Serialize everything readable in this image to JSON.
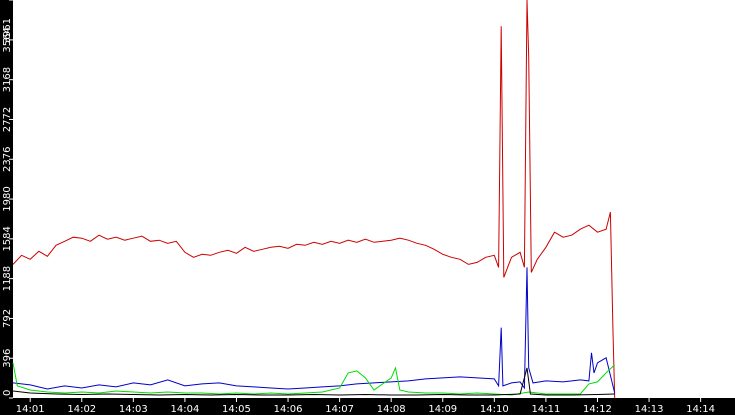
{
  "chart_data": {
    "type": "line",
    "title": "",
    "xlabel": "",
    "ylabel": "",
    "xlim": [
      "14:00:40",
      "14:14:40"
    ],
    "ylim": [
      0,
      3961
    ],
    "grid": false,
    "legend": "none",
    "y_ticks": [
      "0",
      "396",
      "792",
      "1188",
      "1584",
      "1980",
      "2376",
      "2772",
      "3168",
      "3564",
      "3961"
    ],
    "x_ticks": [
      "14:01",
      "14:02",
      "14:03",
      "14:04",
      "14:05",
      "14:06",
      "14:07",
      "14:08",
      "14:09",
      "14:10",
      "14:11",
      "14:12",
      "14:13",
      "14:14"
    ],
    "colors": {
      "red": "#cc0000",
      "blue": "#0000cc",
      "green": "#00dd00",
      "black": "#000000",
      "axis_bg": "#000000",
      "tick_text": "#ffffff"
    },
    "series": [
      {
        "color": "red",
        "points": [
          [
            "14:00:40",
            1330
          ],
          [
            "14:00:50",
            1420
          ],
          [
            "14:01:00",
            1380
          ],
          [
            "14:01:10",
            1460
          ],
          [
            "14:01:20",
            1410
          ],
          [
            "14:01:30",
            1520
          ],
          [
            "14:01:40",
            1560
          ],
          [
            "14:01:50",
            1600
          ],
          [
            "14:02:00",
            1590
          ],
          [
            "14:02:10",
            1560
          ],
          [
            "14:02:20",
            1620
          ],
          [
            "14:02:30",
            1580
          ],
          [
            "14:02:40",
            1600
          ],
          [
            "14:02:50",
            1570
          ],
          [
            "14:03:00",
            1590
          ],
          [
            "14:03:10",
            1610
          ],
          [
            "14:03:20",
            1560
          ],
          [
            "14:03:30",
            1570
          ],
          [
            "14:03:40",
            1540
          ],
          [
            "14:03:50",
            1560
          ],
          [
            "14:04:00",
            1450
          ],
          [
            "14:04:10",
            1400
          ],
          [
            "14:04:20",
            1430
          ],
          [
            "14:04:30",
            1420
          ],
          [
            "14:04:40",
            1450
          ],
          [
            "14:04:50",
            1470
          ],
          [
            "14:05:00",
            1440
          ],
          [
            "14:05:10",
            1500
          ],
          [
            "14:05:20",
            1460
          ],
          [
            "14:05:30",
            1480
          ],
          [
            "14:05:40",
            1500
          ],
          [
            "14:05:50",
            1510
          ],
          [
            "14:06:00",
            1490
          ],
          [
            "14:06:10",
            1530
          ],
          [
            "14:06:20",
            1520
          ],
          [
            "14:06:30",
            1550
          ],
          [
            "14:06:40",
            1530
          ],
          [
            "14:06:50",
            1560
          ],
          [
            "14:07:00",
            1540
          ],
          [
            "14:07:10",
            1570
          ],
          [
            "14:07:20",
            1550
          ],
          [
            "14:07:30",
            1580
          ],
          [
            "14:07:40",
            1550
          ],
          [
            "14:07:50",
            1560
          ],
          [
            "14:08:00",
            1570
          ],
          [
            "14:08:10",
            1590
          ],
          [
            "14:08:20",
            1570
          ],
          [
            "14:08:30",
            1540
          ],
          [
            "14:08:40",
            1520
          ],
          [
            "14:08:50",
            1480
          ],
          [
            "14:09:00",
            1430
          ],
          [
            "14:09:10",
            1400
          ],
          [
            "14:09:20",
            1380
          ],
          [
            "14:09:30",
            1330
          ],
          [
            "14:09:40",
            1350
          ],
          [
            "14:09:50",
            1400
          ],
          [
            "14:10:00",
            1420
          ],
          [
            "14:10:05",
            1300
          ],
          [
            "14:10:08",
            3700
          ],
          [
            "14:10:11",
            1200
          ],
          [
            "14:10:20",
            1400
          ],
          [
            "14:10:30",
            1450
          ],
          [
            "14:10:35",
            1300
          ],
          [
            "14:10:38",
            3961
          ],
          [
            "14:10:40",
            3400
          ],
          [
            "14:10:43",
            1250
          ],
          [
            "14:10:50",
            1380
          ],
          [
            "14:11:00",
            1500
          ],
          [
            "14:11:10",
            1650
          ],
          [
            "14:11:20",
            1600
          ],
          [
            "14:11:30",
            1620
          ],
          [
            "14:11:40",
            1680
          ],
          [
            "14:11:50",
            1720
          ],
          [
            "14:12:00",
            1650
          ],
          [
            "14:12:10",
            1680
          ],
          [
            "14:12:15",
            1850
          ],
          [
            "14:12:18",
            700
          ],
          [
            "14:12:20",
            0
          ]
        ]
      },
      {
        "color": "blue",
        "points": [
          [
            "14:00:40",
            150
          ],
          [
            "14:01:00",
            130
          ],
          [
            "14:01:20",
            90
          ],
          [
            "14:01:40",
            120
          ],
          [
            "14:02:00",
            100
          ],
          [
            "14:02:20",
            130
          ],
          [
            "14:02:40",
            110
          ],
          [
            "14:03:00",
            150
          ],
          [
            "14:03:20",
            130
          ],
          [
            "14:03:40",
            180
          ],
          [
            "14:04:00",
            120
          ],
          [
            "14:04:20",
            140
          ],
          [
            "14:04:40",
            150
          ],
          [
            "14:05:00",
            120
          ],
          [
            "14:05:20",
            110
          ],
          [
            "14:05:40",
            100
          ],
          [
            "14:06:00",
            90
          ],
          [
            "14:06:20",
            100
          ],
          [
            "14:06:40",
            110
          ],
          [
            "14:07:00",
            120
          ],
          [
            "14:07:20",
            140
          ],
          [
            "14:07:40",
            150
          ],
          [
            "14:08:00",
            160
          ],
          [
            "14:08:20",
            170
          ],
          [
            "14:08:40",
            190
          ],
          [
            "14:09:00",
            200
          ],
          [
            "14:09:20",
            210
          ],
          [
            "14:09:40",
            200
          ],
          [
            "14:10:00",
            190
          ],
          [
            "14:10:05",
            120
          ],
          [
            "14:10:08",
            700
          ],
          [
            "14:10:10",
            120
          ],
          [
            "14:10:20",
            150
          ],
          [
            "14:10:30",
            160
          ],
          [
            "14:10:35",
            100
          ],
          [
            "14:10:38",
            1300
          ],
          [
            "14:10:40",
            300
          ],
          [
            "14:10:45",
            150
          ],
          [
            "14:11:00",
            170
          ],
          [
            "14:11:20",
            160
          ],
          [
            "14:11:40",
            180
          ],
          [
            "14:11:50",
            170
          ],
          [
            "14:11:53",
            450
          ],
          [
            "14:11:56",
            250
          ],
          [
            "14:12:00",
            350
          ],
          [
            "14:12:10",
            400
          ],
          [
            "14:12:20",
            50
          ]
        ]
      },
      {
        "color": "green",
        "points": [
          [
            "14:00:40",
            350
          ],
          [
            "14:00:45",
            120
          ],
          [
            "14:01:00",
            80
          ],
          [
            "14:01:20",
            60
          ],
          [
            "14:01:40",
            50
          ],
          [
            "14:02:00",
            60
          ],
          [
            "14:02:20",
            50
          ],
          [
            "14:02:40",
            70
          ],
          [
            "14:03:00",
            60
          ],
          [
            "14:03:20",
            50
          ],
          [
            "14:03:40",
            60
          ],
          [
            "14:04:00",
            50
          ],
          [
            "14:04:20",
            50
          ],
          [
            "14:04:40",
            40
          ],
          [
            "14:05:00",
            50
          ],
          [
            "14:05:20",
            40
          ],
          [
            "14:05:40",
            50
          ],
          [
            "14:06:00",
            40
          ],
          [
            "14:06:20",
            50
          ],
          [
            "14:06:40",
            60
          ],
          [
            "14:07:00",
            100
          ],
          [
            "14:07:10",
            250
          ],
          [
            "14:07:20",
            270
          ],
          [
            "14:07:30",
            200
          ],
          [
            "14:07:40",
            80
          ],
          [
            "14:08:00",
            200
          ],
          [
            "14:08:05",
            300
          ],
          [
            "14:08:10",
            80
          ],
          [
            "14:08:20",
            60
          ],
          [
            "14:08:40",
            50
          ],
          [
            "14:09:00",
            50
          ],
          [
            "14:09:20",
            40
          ],
          [
            "14:09:40",
            50
          ],
          [
            "14:10:00",
            40
          ],
          [
            "14:10:20",
            30
          ],
          [
            "14:10:40",
            60
          ],
          [
            "14:11:00",
            40
          ],
          [
            "14:11:20",
            40
          ],
          [
            "14:11:40",
            40
          ],
          [
            "14:11:50",
            140
          ],
          [
            "14:12:00",
            160
          ],
          [
            "14:12:10",
            250
          ],
          [
            "14:12:20",
            330
          ]
        ]
      },
      {
        "color": "black",
        "points": [
          [
            "14:00:40",
            70
          ],
          [
            "14:01:00",
            50
          ],
          [
            "14:01:30",
            40
          ],
          [
            "14:02:00",
            35
          ],
          [
            "14:02:30",
            40
          ],
          [
            "14:03:00",
            35
          ],
          [
            "14:03:30",
            30
          ],
          [
            "14:04:00",
            35
          ],
          [
            "14:04:30",
            30
          ],
          [
            "14:05:00",
            35
          ],
          [
            "14:05:30",
            30
          ],
          [
            "14:06:00",
            30
          ],
          [
            "14:06:30",
            35
          ],
          [
            "14:07:00",
            30
          ],
          [
            "14:07:30",
            35
          ],
          [
            "14:08:00",
            30
          ],
          [
            "14:08:30",
            30
          ],
          [
            "14:09:00",
            35
          ],
          [
            "14:09:30",
            30
          ],
          [
            "14:10:00",
            30
          ],
          [
            "14:10:30",
            40
          ],
          [
            "14:10:38",
            300
          ],
          [
            "14:10:42",
            40
          ],
          [
            "14:11:00",
            30
          ],
          [
            "14:11:30",
            30
          ],
          [
            "14:12:00",
            35
          ],
          [
            "14:12:20",
            40
          ]
        ]
      }
    ]
  }
}
